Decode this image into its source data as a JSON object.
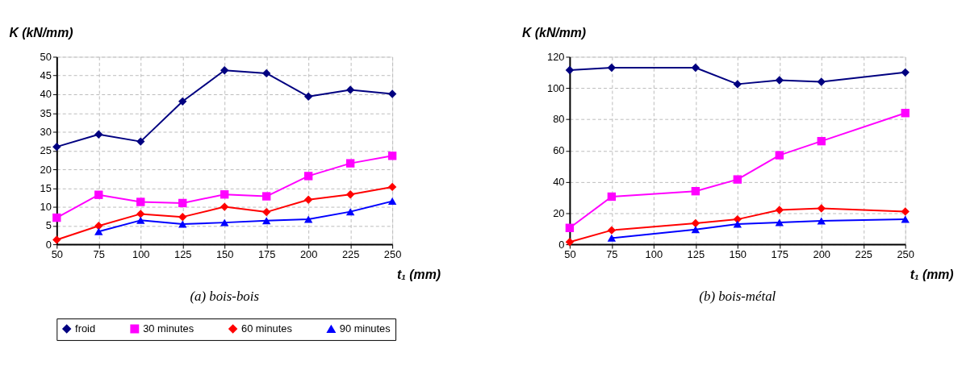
{
  "chart_data": [
    {
      "type": "line",
      "title": "(a) bois-bois",
      "xlabel": "t₁ (mm)",
      "ylabel": "K (kN/mm)",
      "x": [
        50,
        75,
        100,
        125,
        150,
        175,
        200,
        225,
        250
      ],
      "xlim": [
        50,
        250
      ],
      "xticks": [
        50,
        75,
        100,
        125,
        150,
        175,
        200,
        225,
        250
      ],
      "ylim": [
        0,
        50
      ],
      "yticks": [
        0,
        5,
        10,
        15,
        20,
        25,
        30,
        35,
        40,
        45,
        50
      ],
      "grid": true,
      "legend": "bottom",
      "series": [
        {
          "name": "froid",
          "color": "#000080",
          "marker": "diamond",
          "values": [
            26,
            29.3,
            27.4,
            38.1,
            46.4,
            45.6,
            39.4,
            41.2,
            40.1
          ]
        },
        {
          "name": "30 minutes",
          "color": "#ff00ff",
          "marker": "square",
          "values": [
            7.1,
            13.2,
            11.3,
            11.0,
            13.3,
            12.8,
            18.2,
            21.6,
            23.6
          ]
        },
        {
          "name": "60 minutes",
          "color": "#ff0000",
          "marker": "diamond",
          "values": [
            1.2,
            4.9,
            8.1,
            7.3,
            10.0,
            8.6,
            11.9,
            13.3,
            15.3
          ]
        },
        {
          "name": "90 minutes",
          "color": "#0000ff",
          "marker": "triangle",
          "values": [
            null,
            3.4,
            6.4,
            5.4,
            5.8,
            6.3,
            6.7,
            8.7,
            11.5
          ]
        }
      ]
    },
    {
      "type": "line",
      "title": "(b) bois-métal",
      "xlabel": "t₁ (mm)",
      "ylabel": "K (kN/mm)",
      "x": [
        50,
        75,
        125,
        150,
        175,
        200,
        250
      ],
      "xlim": [
        50,
        250
      ],
      "xticks": [
        50,
        75,
        100,
        125,
        150,
        175,
        200,
        225,
        250
      ],
      "ylim": [
        0,
        120
      ],
      "yticks": [
        0,
        20,
        40,
        60,
        80,
        100,
        120
      ],
      "grid": true,
      "legend": "bottom",
      "series": [
        {
          "name": "froid",
          "color": "#000080",
          "marker": "diamond",
          "values": [
            111.5,
            113,
            113,
            102.5,
            105,
            104,
            110
          ]
        },
        {
          "name": "30 minutes",
          "color": "#ff00ff",
          "marker": "square",
          "values": [
            10.5,
            30.5,
            34,
            41.5,
            57,
            66,
            84
          ]
        },
        {
          "name": "60 minutes",
          "color": "#ff0000",
          "marker": "diamond",
          "values": [
            1.5,
            9,
            13.5,
            16,
            22,
            23,
            21
          ]
        },
        {
          "name": "90 minutes",
          "color": "#0000ff",
          "marker": "triangle",
          "values": [
            null,
            4,
            9.5,
            13,
            14,
            15,
            16
          ]
        }
      ]
    }
  ]
}
